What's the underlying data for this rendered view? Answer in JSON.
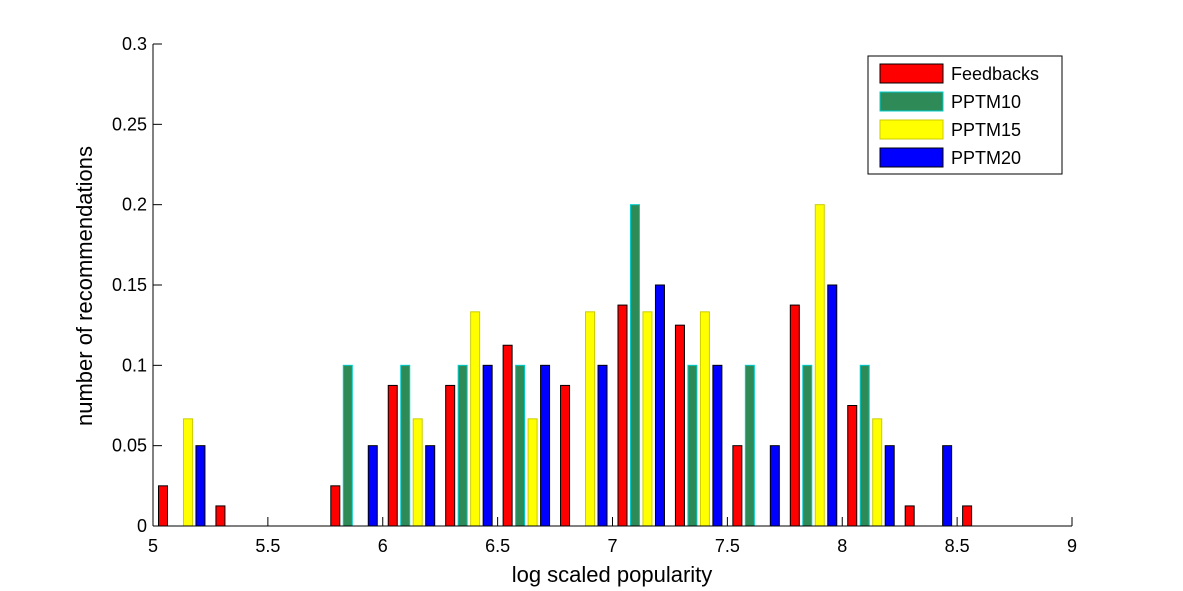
{
  "chart_data": {
    "type": "bar",
    "xlabel": "log scaled popularity",
    "ylabel": "number of recommendations",
    "xlim": [
      5,
      9
    ],
    "ylim": [
      0,
      0.3
    ],
    "x_ticks": [
      5,
      5.5,
      6,
      6.5,
      7,
      7.5,
      8,
      8.5,
      9
    ],
    "x_tick_labels": [
      "5",
      "5.5",
      "6",
      "6.5",
      "7",
      "7.5",
      "8",
      "8.5",
      "9"
    ],
    "y_ticks": [
      0,
      0.05,
      0.1,
      0.15,
      0.2,
      0.25,
      0.3
    ],
    "y_tick_labels": [
      "0",
      "0.05",
      "0.1",
      "0.15",
      "0.2",
      "0.25",
      "0.3"
    ],
    "grid": false,
    "legend_position": "top-right",
    "x": [
      5.125,
      5.375,
      5.625,
      5.875,
      6.125,
      6.375,
      6.625,
      6.875,
      7.125,
      7.375,
      7.625,
      7.875,
      8.125,
      8.375,
      8.625,
      8.875
    ],
    "series": [
      {
        "name": "Feedbacks",
        "color": "#ff0000",
        "edge": "#000000",
        "values": [
          0.025,
          0.0125,
          0,
          0.025,
          0.0875,
          0.0875,
          0.1125,
          0.0875,
          0.1375,
          0.125,
          0.05,
          0.1375,
          0.075,
          0.0125,
          0.0125,
          0
        ]
      },
      {
        "name": "PPTM10",
        "color": "#2e8b57",
        "edge": "#00cccc",
        "values": [
          0,
          0,
          0,
          0.1,
          0.1,
          0.1,
          0.1,
          0,
          0.2,
          0.1,
          0.1,
          0.1,
          0.1,
          0,
          0,
          0
        ]
      },
      {
        "name": "PPTM15",
        "color": "#ffff00",
        "edge": "#cccc00",
        "values": [
          0.0667,
          0,
          0,
          0,
          0.0667,
          0.1333,
          0.0667,
          0.1333,
          0.1333,
          0.1333,
          0,
          0.2,
          0.0667,
          0,
          0,
          0
        ]
      },
      {
        "name": "PPTM20",
        "color": "#0000ff",
        "edge": "#000000",
        "values": [
          0.05,
          0,
          0,
          0.05,
          0.05,
          0.1,
          0.1,
          0.1,
          0.15,
          0.1,
          0.05,
          0.15,
          0.05,
          0.05,
          0,
          0
        ]
      }
    ]
  }
}
